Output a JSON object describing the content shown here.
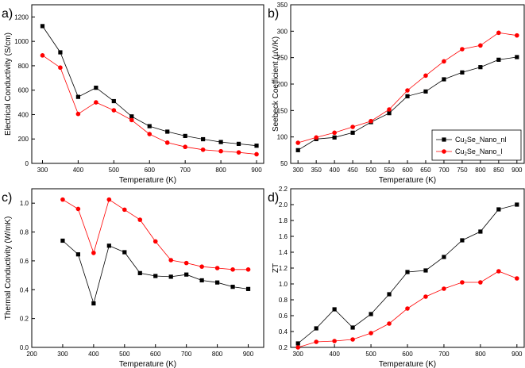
{
  "colors": {
    "black_series": "#000000",
    "red_series": "#ff0000"
  },
  "chart_data": [
    {
      "panel": "a)",
      "type": "line",
      "xlabel": "Temperature (K)",
      "ylabel": "Electrical Conductivity (S/cm)",
      "xlim": [
        270,
        920
      ],
      "ylim": [
        0,
        1300
      ],
      "xticks": [
        300,
        400,
        500,
        600,
        700,
        800,
        900
      ],
      "yticks": [
        0,
        200,
        400,
        600,
        800,
        1000,
        1200
      ],
      "x": [
        300,
        350,
        400,
        450,
        500,
        550,
        600,
        650,
        700,
        750,
        800,
        850,
        900
      ],
      "series": [
        {
          "name": "Cu2Se_Nano_nl",
          "color": "#000000",
          "marker": "square",
          "values": [
            1125,
            910,
            545,
            620,
            510,
            385,
            305,
            260,
            225,
            198,
            175,
            160,
            145
          ]
        },
        {
          "name": "Cu2Se_Nano_l",
          "color": "#ff0000",
          "marker": "circle",
          "values": [
            885,
            785,
            405,
            500,
            435,
            355,
            240,
            170,
            135,
            112,
            100,
            90,
            75
          ]
        }
      ]
    },
    {
      "panel": "b)",
      "type": "line",
      "xlabel": "Temperature (K)",
      "ylabel": "Seebeck Coefficient (µV/K)",
      "xlim": [
        280,
        920
      ],
      "ylim": [
        50,
        350
      ],
      "xticks": [
        300,
        350,
        400,
        450,
        500,
        550,
        600,
        650,
        700,
        750,
        800,
        850,
        900
      ],
      "yticks": [
        50,
        100,
        150,
        200,
        250,
        300,
        350
      ],
      "x": [
        300,
        350,
        400,
        450,
        500,
        550,
        600,
        650,
        700,
        750,
        800,
        850,
        900
      ],
      "legend": {
        "position": "bottom-right",
        "entries": [
          {
            "base": "Cu",
            "sub": "2",
            "rest": "Se_Nano_nl",
            "color": "#000000",
            "marker": "square"
          },
          {
            "base": "Cu",
            "sub": "2",
            "rest": "Se_Nano_l",
            "color": "#ff0000",
            "marker": "circle"
          }
        ]
      },
      "series": [
        {
          "name": "Cu2Se_Nano_nl",
          "color": "#000000",
          "marker": "square",
          "values": [
            75,
            96,
            99,
            108,
            128,
            145,
            177,
            186,
            209,
            222,
            232,
            246,
            251
          ]
        },
        {
          "name": "Cu2Se_Nano_l",
          "color": "#ff0000",
          "marker": "circle",
          "values": [
            89,
            99,
            108,
            119,
            130,
            152,
            188,
            216,
            243,
            266,
            273,
            297,
            292
          ]
        }
      ]
    },
    {
      "panel": "c)",
      "type": "line",
      "xlabel": "Temperature (K)",
      "ylabel": "Thermal Conductivity (W/mK)",
      "xlim": [
        200,
        950
      ],
      "ylim": [
        0.0,
        1.1
      ],
      "xticks": [
        200,
        300,
        400,
        500,
        600,
        700,
        800,
        900
      ],
      "yticks": [
        0.0,
        0.2,
        0.4,
        0.6,
        0.8,
        1.0
      ],
      "x": [
        300,
        350,
        400,
        450,
        500,
        550,
        600,
        650,
        700,
        750,
        800,
        850,
        900
      ],
      "series": [
        {
          "name": "Cu2Se_Nano_nl",
          "color": "#000000",
          "marker": "square",
          "values": [
            0.74,
            0.645,
            0.305,
            0.705,
            0.66,
            0.515,
            0.495,
            0.49,
            0.505,
            0.465,
            0.45,
            0.42,
            0.405
          ]
        },
        {
          "name": "Cu2Se_Nano_l",
          "color": "#ff0000",
          "marker": "circle",
          "values": [
            1.025,
            0.96,
            0.655,
            1.025,
            0.955,
            0.885,
            0.735,
            0.605,
            0.585,
            0.56,
            0.55,
            0.54,
            0.54
          ]
        }
      ]
    },
    {
      "panel": "d)",
      "type": "line",
      "xlabel": "Temperature (K)",
      "ylabel": "ZT",
      "xlim": [
        280,
        920
      ],
      "ylim": [
        0.2,
        2.2
      ],
      "xticks": [
        300,
        400,
        500,
        600,
        700,
        800,
        900
      ],
      "yticks": [
        0.2,
        0.4,
        0.6,
        0.8,
        1.0,
        1.2,
        1.4,
        1.6,
        1.8,
        2.0,
        2.2
      ],
      "x": [
        300,
        350,
        400,
        450,
        500,
        550,
        600,
        650,
        700,
        750,
        800,
        850,
        900
      ],
      "series": [
        {
          "name": "Cu2Se_Nano_nl",
          "color": "#000000",
          "marker": "square",
          "values": [
            0.25,
            0.44,
            0.68,
            0.45,
            0.62,
            0.87,
            1.15,
            1.17,
            1.34,
            1.55,
            1.66,
            1.94,
            2.0
          ]
        },
        {
          "name": "Cu2Se_Nano_l",
          "color": "#ff0000",
          "marker": "circle",
          "values": [
            0.2,
            0.27,
            0.28,
            0.3,
            0.38,
            0.5,
            0.69,
            0.84,
            0.94,
            1.02,
            1.02,
            1.16,
            1.07
          ]
        }
      ]
    }
  ]
}
